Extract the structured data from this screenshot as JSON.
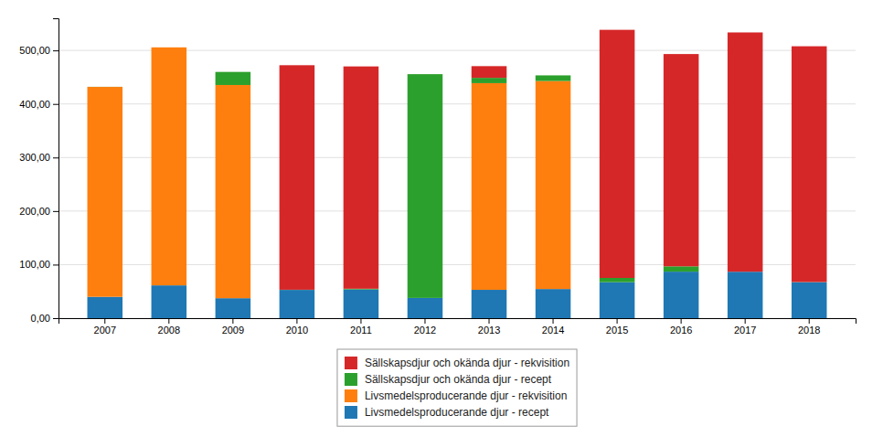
{
  "chart_data": {
    "type": "bar",
    "stacked": true,
    "categories": [
      "2007",
      "2008",
      "2009",
      "2010",
      "2011",
      "2012",
      "2013",
      "2014",
      "2015",
      "2016",
      "2017",
      "2018"
    ],
    "series": [
      {
        "name": "Livsmedelsproducerande djur - recept",
        "values": [
          39.83,
          61.23,
          37.25,
          52.77,
          53.58,
          37.75,
          52.89,
          54.41,
          67.18,
          86.85,
          86.68,
          67.14
        ]
      },
      {
        "name": "Livsmedelsproducerande djur - rekvisition",
        "values": [
          392.04,
          444.46,
          398.16,
          0.0,
          0.0,
          0.0,
          386.0,
          388.44,
          0.0,
          0.0,
          0.0,
          0.0
        ]
      },
      {
        "name": "Sällskapsdjur och okända djur - recept",
        "values": [
          0.2,
          0.01,
          24.43,
          0.3,
          1.32,
          417.91,
          9.91,
          10.54,
          7.93,
          9.92,
          0.01,
          0.26
        ]
      },
      {
        "name": "Sällskapsdjur och okända djur - rekvisition",
        "values": [
          0.0,
          0.01,
          0.0,
          419.3,
          415.22,
          0.0,
          21.83,
          0.0,
          463.36,
          396.45,
          446.88,
          440.37
        ]
      }
    ],
    "ylim": [
      0,
      560
    ],
    "yticks": [
      {
        "value": 0,
        "label": "0,00"
      },
      {
        "value": 100,
        "label": "100,00"
      },
      {
        "value": 200,
        "label": "200,00"
      },
      {
        "value": 300,
        "label": "300,00"
      },
      {
        "value": 400,
        "label": "400,00"
      },
      {
        "value": 500,
        "label": "500,00"
      }
    ],
    "grid": true,
    "legend": "bottom"
  }
}
